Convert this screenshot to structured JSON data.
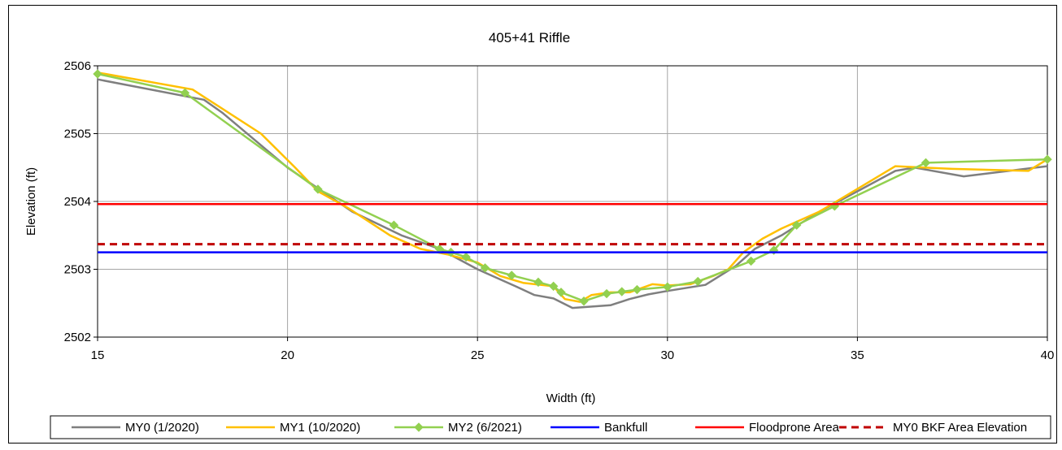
{
  "chart_data": {
    "type": "line",
    "title": "405+41 Riffle",
    "xlabel": "Width (ft)",
    "ylabel": "Elevation (ft)",
    "xlim": [
      15,
      40
    ],
    "ylim": [
      2502,
      2506
    ],
    "x_ticks": [
      15,
      20,
      25,
      30,
      35,
      40
    ],
    "y_ticks": [
      2502,
      2503,
      2504,
      2505,
      2506
    ],
    "grid": true,
    "legend_position": "bottom",
    "series": [
      {
        "name": "MY0 (1/2020)",
        "color": "#7f7f7f",
        "dash": "solid",
        "marker": "none",
        "points": [
          [
            15,
            2505.8
          ],
          [
            17.8,
            2505.5
          ],
          [
            18.3,
            2505.3
          ],
          [
            20.0,
            2504.5
          ],
          [
            21.7,
            2503.85
          ],
          [
            23.0,
            2503.5
          ],
          [
            24.0,
            2503.3
          ],
          [
            25.0,
            2503.0
          ],
          [
            26.0,
            2502.75
          ],
          [
            26.5,
            2502.62
          ],
          [
            27.0,
            2502.57
          ],
          [
            27.5,
            2502.43
          ],
          [
            28.5,
            2502.47
          ],
          [
            29.0,
            2502.56
          ],
          [
            29.5,
            2502.63
          ],
          [
            30.0,
            2502.68
          ],
          [
            31.0,
            2502.77
          ],
          [
            31.8,
            2503.05
          ],
          [
            32.3,
            2503.3
          ],
          [
            33.0,
            2503.5
          ],
          [
            34.0,
            2503.85
          ],
          [
            35.0,
            2504.15
          ],
          [
            36.0,
            2504.45
          ],
          [
            36.5,
            2504.5
          ],
          [
            37.8,
            2504.37
          ],
          [
            40.0,
            2504.52
          ]
        ]
      },
      {
        "name": "MY1 (10/2020)",
        "color": "#ffc000",
        "dash": "solid",
        "marker": "none",
        "points": [
          [
            15,
            2505.9
          ],
          [
            17.5,
            2505.65
          ],
          [
            19.3,
            2505.0
          ],
          [
            20.2,
            2504.5
          ],
          [
            20.8,
            2504.15
          ],
          [
            21.6,
            2503.9
          ],
          [
            22.7,
            2503.5
          ],
          [
            23.5,
            2503.3
          ],
          [
            24.2,
            2503.22
          ],
          [
            25.0,
            2503.1
          ],
          [
            25.6,
            2502.9
          ],
          [
            26.2,
            2502.8
          ],
          [
            27.0,
            2502.75
          ],
          [
            27.3,
            2502.56
          ],
          [
            27.7,
            2502.52
          ],
          [
            28.0,
            2502.62
          ],
          [
            28.5,
            2502.66
          ],
          [
            29.0,
            2502.66
          ],
          [
            29.6,
            2502.78
          ],
          [
            30.0,
            2502.76
          ],
          [
            30.6,
            2502.78
          ],
          [
            31.2,
            2502.9
          ],
          [
            31.6,
            2503.0
          ],
          [
            32.0,
            2503.25
          ],
          [
            32.5,
            2503.45
          ],
          [
            33.0,
            2503.6
          ],
          [
            34.0,
            2503.85
          ],
          [
            36.0,
            2504.52
          ],
          [
            37.5,
            2504.48
          ],
          [
            39.5,
            2504.45
          ],
          [
            40.0,
            2504.62
          ]
        ]
      },
      {
        "name": "MY2 (6/2021)",
        "color": "#92d050",
        "dash": "solid",
        "marker": "diamond",
        "points": [
          [
            15,
            2505.88
          ],
          [
            17.3,
            2505.6
          ],
          [
            20.8,
            2504.18
          ],
          [
            22.8,
            2503.65
          ],
          [
            24.0,
            2503.3
          ],
          [
            24.3,
            2503.25
          ],
          [
            24.7,
            2503.18
          ],
          [
            25.2,
            2503.02
          ],
          [
            25.9,
            2502.91
          ],
          [
            26.6,
            2502.81
          ],
          [
            27.0,
            2502.75
          ],
          [
            27.2,
            2502.66
          ],
          [
            27.8,
            2502.53
          ],
          [
            28.4,
            2502.64
          ],
          [
            28.8,
            2502.67
          ],
          [
            29.2,
            2502.7
          ],
          [
            30.0,
            2502.74
          ],
          [
            30.8,
            2502.82
          ],
          [
            32.2,
            2503.12
          ],
          [
            32.8,
            2503.28
          ],
          [
            33.4,
            2503.65
          ],
          [
            34.4,
            2503.93
          ],
          [
            36.8,
            2504.57
          ],
          [
            40.0,
            2504.62
          ]
        ]
      },
      {
        "name": "Bankfull",
        "color": "#0000ff",
        "dash": "solid",
        "marker": "none",
        "points": [
          [
            15,
            2503.25
          ],
          [
            40,
            2503.25
          ]
        ]
      },
      {
        "name": "Floodprone Area",
        "color": "#ff0000",
        "dash": "solid",
        "marker": "none",
        "points": [
          [
            15,
            2503.96
          ],
          [
            40,
            2503.96
          ]
        ]
      },
      {
        "name": "MY0 BKF Area Elevation",
        "color": "#c00000",
        "dash": "dashed",
        "marker": "none",
        "points": [
          [
            15,
            2503.37
          ],
          [
            40,
            2503.37
          ]
        ]
      }
    ]
  }
}
